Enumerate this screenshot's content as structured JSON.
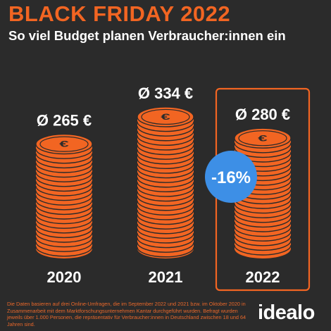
{
  "header": {
    "title": "BLACK FRIDAY 2022",
    "subtitle": "So viel Budget planen Verbraucher:innen ein"
  },
  "chart_data": {
    "type": "bar",
    "categories": [
      "2020",
      "2021",
      "2022"
    ],
    "values": [
      265,
      334,
      280
    ],
    "value_labels": [
      "Ø 265 €",
      "Ø 334 €",
      "Ø 280 €"
    ],
    "highlight_index": 2,
    "badge": "-16%",
    "title": "BLACK FRIDAY 2022",
    "subtitle": "So viel Budget planen Verbraucher:innen ein",
    "xlabel": "",
    "ylabel": "",
    "grid": false,
    "legend": "none"
  },
  "footnote": "Die Daten basieren auf drei Online-Umfragen, die im September 2022 und 2021 bzw. im Oktober 2020 in Zusammenarbeit mit dem Marktforschungsunternehmen Kantar durchgeführt wurden. Befragt wurden jeweils über 1.000 Personen, die repräsentativ für Verbraucher:innen in Deutschland zwischen 18 und 64 Jahren sind.",
  "brand": {
    "logo_text": "idealo"
  },
  "colors": {
    "background": "#2b2b2b",
    "accent": "#f26522",
    "badge": "#3d8fe6",
    "text": "#ffffff"
  }
}
